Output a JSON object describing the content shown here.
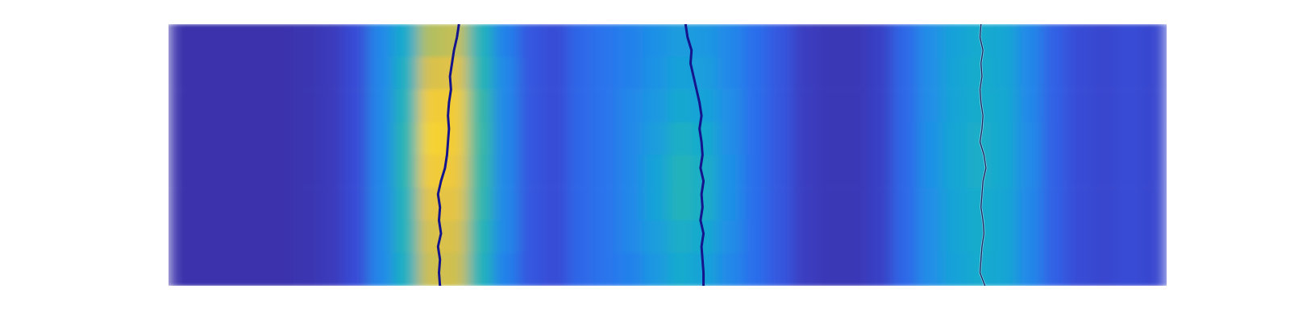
{
  "chart_data": {
    "type": "heatmap",
    "tick_labels": false,
    "xlim": [
      0,
      100
    ],
    "ylim": [
      0,
      100
    ],
    "zlim": [
      0,
      1
    ],
    "cells": [
      [
        0.03,
        0.03,
        0.03,
        0.03,
        0.03,
        0.04,
        0.06,
        0.12,
        0.3,
        0.45,
        0.75,
        0.78,
        0.5,
        0.28,
        0.15,
        0.12,
        0.2,
        0.24,
        0.28,
        0.33,
        0.38,
        0.36,
        0.3,
        0.22,
        0.15,
        0.07,
        0.05,
        0.05,
        0.08,
        0.2,
        0.32,
        0.4,
        0.44,
        0.42,
        0.3,
        0.18,
        0.12,
        0.1,
        0.12,
        0.1
      ],
      [
        0.03,
        0.03,
        0.03,
        0.03,
        0.03,
        0.04,
        0.06,
        0.12,
        0.3,
        0.48,
        0.82,
        0.84,
        0.52,
        0.3,
        0.15,
        0.12,
        0.2,
        0.24,
        0.28,
        0.34,
        0.4,
        0.38,
        0.3,
        0.22,
        0.15,
        0.07,
        0.05,
        0.05,
        0.08,
        0.2,
        0.32,
        0.41,
        0.45,
        0.42,
        0.3,
        0.18,
        0.12,
        0.1,
        0.12,
        0.1
      ],
      [
        0.03,
        0.03,
        0.03,
        0.03,
        0.03,
        0.04,
        0.06,
        0.12,
        0.3,
        0.5,
        0.9,
        0.9,
        0.55,
        0.3,
        0.15,
        0.12,
        0.2,
        0.24,
        0.3,
        0.36,
        0.43,
        0.4,
        0.32,
        0.22,
        0.15,
        0.07,
        0.05,
        0.05,
        0.08,
        0.2,
        0.32,
        0.41,
        0.45,
        0.43,
        0.3,
        0.18,
        0.12,
        0.1,
        0.12,
        0.1
      ],
      [
        0.03,
        0.03,
        0.03,
        0.03,
        0.03,
        0.04,
        0.06,
        0.12,
        0.3,
        0.52,
        0.93,
        0.9,
        0.56,
        0.3,
        0.15,
        0.12,
        0.2,
        0.24,
        0.3,
        0.38,
        0.47,
        0.44,
        0.32,
        0.22,
        0.15,
        0.07,
        0.05,
        0.05,
        0.08,
        0.2,
        0.33,
        0.42,
        0.46,
        0.43,
        0.31,
        0.18,
        0.12,
        0.1,
        0.12,
        0.1
      ],
      [
        0.03,
        0.03,
        0.03,
        0.03,
        0.03,
        0.04,
        0.06,
        0.12,
        0.3,
        0.52,
        0.9,
        0.88,
        0.55,
        0.3,
        0.15,
        0.12,
        0.2,
        0.24,
        0.3,
        0.4,
        0.5,
        0.46,
        0.33,
        0.22,
        0.15,
        0.07,
        0.05,
        0.05,
        0.08,
        0.2,
        0.33,
        0.42,
        0.46,
        0.43,
        0.31,
        0.18,
        0.12,
        0.1,
        0.12,
        0.1
      ],
      [
        0.03,
        0.03,
        0.03,
        0.03,
        0.03,
        0.04,
        0.06,
        0.12,
        0.3,
        0.5,
        0.85,
        0.85,
        0.54,
        0.3,
        0.15,
        0.12,
        0.2,
        0.24,
        0.3,
        0.4,
        0.5,
        0.46,
        0.33,
        0.22,
        0.15,
        0.07,
        0.05,
        0.05,
        0.08,
        0.2,
        0.32,
        0.41,
        0.45,
        0.42,
        0.3,
        0.18,
        0.12,
        0.1,
        0.12,
        0.1
      ],
      [
        0.03,
        0.03,
        0.03,
        0.03,
        0.03,
        0.04,
        0.06,
        0.12,
        0.3,
        0.5,
        0.82,
        0.82,
        0.52,
        0.3,
        0.15,
        0.12,
        0.2,
        0.24,
        0.3,
        0.38,
        0.46,
        0.43,
        0.32,
        0.22,
        0.15,
        0.07,
        0.05,
        0.05,
        0.08,
        0.2,
        0.32,
        0.41,
        0.45,
        0.42,
        0.3,
        0.18,
        0.12,
        0.1,
        0.12,
        0.1
      ],
      [
        0.03,
        0.03,
        0.03,
        0.03,
        0.03,
        0.04,
        0.06,
        0.12,
        0.3,
        0.48,
        0.8,
        0.8,
        0.5,
        0.28,
        0.15,
        0.12,
        0.2,
        0.24,
        0.28,
        0.36,
        0.44,
        0.4,
        0.3,
        0.22,
        0.15,
        0.07,
        0.05,
        0.05,
        0.08,
        0.2,
        0.32,
        0.4,
        0.44,
        0.42,
        0.3,
        0.18,
        0.12,
        0.1,
        0.12,
        0.1
      ]
    ],
    "y": [
      0,
      5,
      10,
      15,
      20,
      25,
      30,
      35,
      40,
      45,
      50,
      55,
      60,
      65,
      70,
      75,
      80,
      85,
      90,
      95,
      100
    ],
    "series": [
      {
        "type": "line",
        "color": "#14148c",
        "line_style": "solid",
        "values": [
          29.1,
          28.9,
          28.6,
          28.4,
          28.2,
          28.3,
          28.1,
          28.0,
          28.1,
          28.0,
          27.9,
          27.7,
          27.3,
          27.0,
          27.2,
          27.1,
          27.3,
          27.0,
          27.2,
          27.1,
          27.2
        ]
      },
      {
        "type": "line",
        "color": "#14148c",
        "line_style": "solid",
        "values": [
          51.8,
          52.0,
          52.4,
          52.3,
          52.6,
          52.9,
          53.2,
          53.4,
          53.2,
          53.4,
          53.5,
          53.3,
          53.6,
          53.4,
          53.5,
          53.3,
          53.6,
          53.4,
          53.5,
          53.6,
          53.6
        ]
      },
      {
        "type": "line",
        "color": "#1c2460",
        "line_style": "thin",
        "values": [
          81.4,
          81.3,
          81.6,
          81.4,
          81.5,
          81.3,
          81.4,
          81.6,
          81.5,
          81.3,
          81.7,
          81.9,
          81.6,
          81.5,
          81.4,
          81.6,
          81.7,
          81.5,
          81.4,
          81.3,
          81.8
        ]
      }
    ]
  }
}
